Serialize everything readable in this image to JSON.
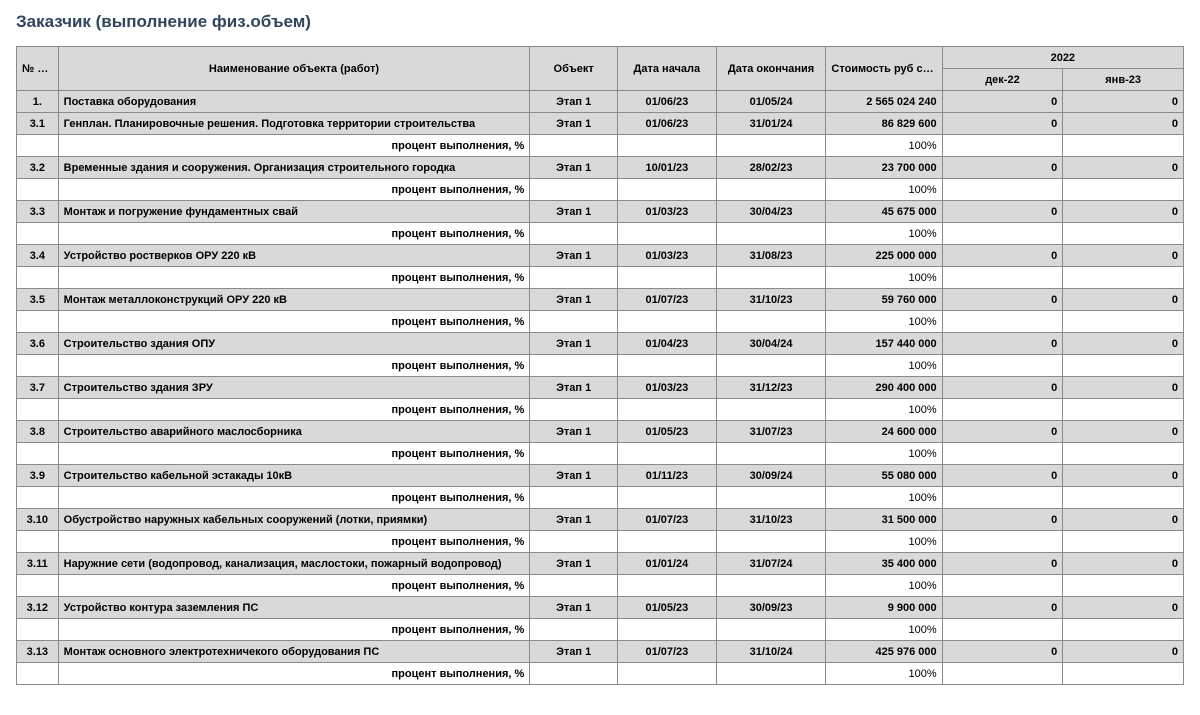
{
  "title": "Заказчик (выполнение физ.объем)",
  "headers": {
    "num": "№ п/п",
    "name": "Наименование объекта (работ)",
    "object": "Объект",
    "start": "Дата начала",
    "end": "Дата окончания",
    "cost": "Стоимость руб с НДС",
    "year": "2022",
    "m1": "дек-22",
    "m2": "янв-23"
  },
  "pct_label": "процент выполнения, %",
  "stage": "Этап 1",
  "zero": "0",
  "rows": [
    {
      "n": "1.",
      "name": "Поставка оборудования",
      "start": "01/06/23",
      "end": "01/05/24",
      "cost": "2 565 024 240",
      "pct": null
    },
    {
      "n": "3.1",
      "name": "Генплан. Планировочные решения. Подготовка территории строительства",
      "start": "01/06/23",
      "end": "31/01/24",
      "cost": "86 829 600",
      "pct": "100%"
    },
    {
      "n": "3.2",
      "name": "Временные здания и сооружения. Организация строительного городка",
      "start": "10/01/23",
      "end": "28/02/23",
      "cost": "23 700 000",
      "pct": "100%"
    },
    {
      "n": "3.3",
      "name": "Монтаж и погружение фундаментных свай",
      "start": "01/03/23",
      "end": "30/04/23",
      "cost": "45 675 000",
      "pct": "100%"
    },
    {
      "n": "3.4",
      "name": "Устройство ростверков ОРУ 220 кВ",
      "start": "01/03/23",
      "end": "31/08/23",
      "cost": "225 000 000",
      "pct": "100%"
    },
    {
      "n": "3.5",
      "name": "Монтаж металлоконструкций ОРУ 220 кВ",
      "start": "01/07/23",
      "end": "31/10/23",
      "cost": "59 760 000",
      "pct": "100%"
    },
    {
      "n": "3.6",
      "name": "Строительство здания ОПУ",
      "start": "01/04/23",
      "end": "30/04/24",
      "cost": "157 440 000",
      "pct": "100%"
    },
    {
      "n": "3.7",
      "name": "Строительство здания ЗРУ",
      "start": "01/03/23",
      "end": "31/12/23",
      "cost": "290 400 000",
      "pct": "100%"
    },
    {
      "n": "3.8",
      "name": "Строительство аварийного маслосборника",
      "start": "01/05/23",
      "end": "31/07/23",
      "cost": "24 600 000",
      "pct": "100%"
    },
    {
      "n": "3.9",
      "name": "Строительство кабельной эстакады 10кВ",
      "start": "01/11/23",
      "end": "30/09/24",
      "cost": "55 080 000",
      "pct": "100%"
    },
    {
      "n": "3.10",
      "name": "Обустройство наружных кабельных сооружений (лотки, приямки)",
      "start": "01/07/23",
      "end": "31/10/23",
      "cost": "31 500 000",
      "pct": "100%"
    },
    {
      "n": "3.11",
      "name": "Наружние сети (водопровод, канализация, маслостоки, пожарный водопровод)",
      "start": "01/01/24",
      "end": "31/07/24",
      "cost": "35 400 000",
      "pct": "100%"
    },
    {
      "n": "3.12",
      "name": "Устройство контура заземления ПС",
      "start": "01/05/23",
      "end": "30/09/23",
      "cost": "9 900 000",
      "pct": "100%"
    },
    {
      "n": "3.13",
      "name": "Монтаж основного электротехничекого оборудования ПС",
      "start": "01/07/23",
      "end": "31/10/24",
      "cost": "425 976 000",
      "pct": "100%"
    }
  ]
}
